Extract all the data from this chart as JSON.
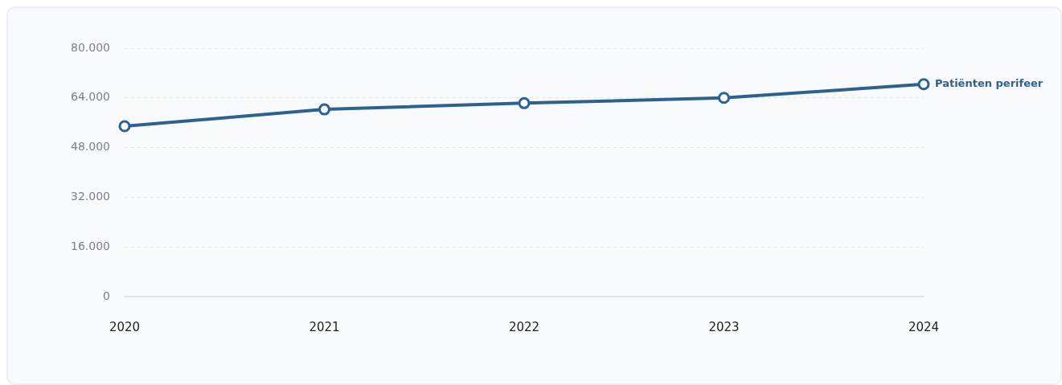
{
  "chart_data": {
    "type": "line",
    "categories": [
      "2020",
      "2021",
      "2022",
      "2023",
      "2024"
    ],
    "series": [
      {
        "name": "Patiënten perifeer",
        "color": "#2e6190",
        "values": [
          54900,
          60300,
          62300,
          64000,
          68400
        ]
      }
    ],
    "ylim": [
      0,
      80000
    ],
    "yticks": [
      {
        "value": 0,
        "label": "0"
      },
      {
        "value": 16000,
        "label": "16.000"
      },
      {
        "value": 32000,
        "label": "32.000"
      },
      {
        "value": 48000,
        "label": "48.000"
      },
      {
        "value": 64000,
        "label": "64.000"
      },
      {
        "value": 80000,
        "label": "80.000"
      }
    ],
    "grid": "y",
    "legend": false,
    "marker": "circle",
    "line_style": "solid"
  }
}
